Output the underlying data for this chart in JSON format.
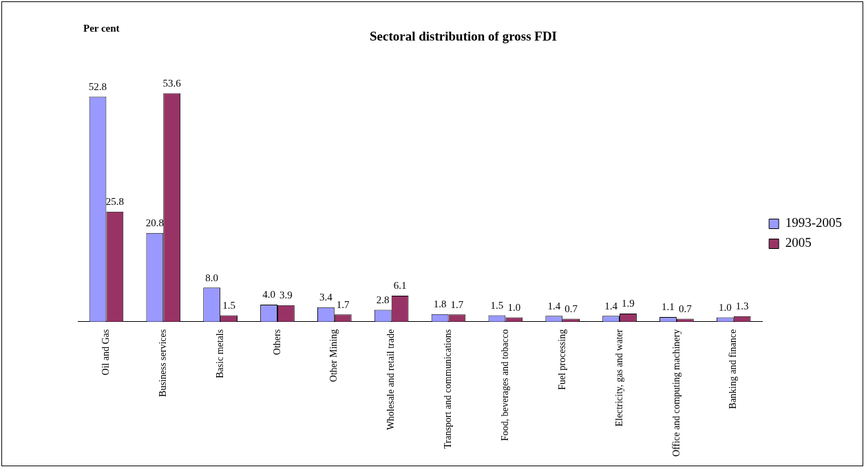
{
  "chart_data": {
    "type": "bar",
    "title": "Sectoral distribution of gross FDI",
    "annotations": [
      "Per cent"
    ],
    "categories": [
      "Oil and Gas",
      "Business services",
      "Basic metals",
      "Others",
      "Other Mining",
      "Wholesale and retail trade",
      "Transport and communications",
      "Food, beverages and tobacco",
      "Fuel processing",
      "Electricity, gas and water",
      "Office and computing machinery",
      "Banking and finance"
    ],
    "series": [
      {
        "name": "1993-2005",
        "color": "#9999ff",
        "values": [
          52.8,
          20.8,
          8.0,
          4.0,
          3.4,
          2.8,
          1.8,
          1.5,
          1.4,
          1.4,
          1.1,
          1.0
        ],
        "value_labels": [
          "52.8",
          "20.8",
          "8.0",
          "4.0",
          "3.4",
          "2.8",
          "1.8",
          "1.5",
          "1.4",
          "1.4",
          "1.1",
          "1.0"
        ]
      },
      {
        "name": "2005",
        "color": "#993366",
        "values": [
          25.8,
          53.6,
          1.5,
          3.9,
          1.7,
          6.1,
          1.7,
          1.0,
          0.7,
          1.9,
          0.7,
          1.3
        ],
        "value_labels": [
          "25.8",
          "53.6",
          "1.5",
          "3.9",
          "1.7",
          "6.1",
          "1.7",
          "1.0",
          "0.7",
          "1.9",
          "0.7",
          "1.3"
        ]
      }
    ],
    "legend": "right",
    "grid": false
  }
}
